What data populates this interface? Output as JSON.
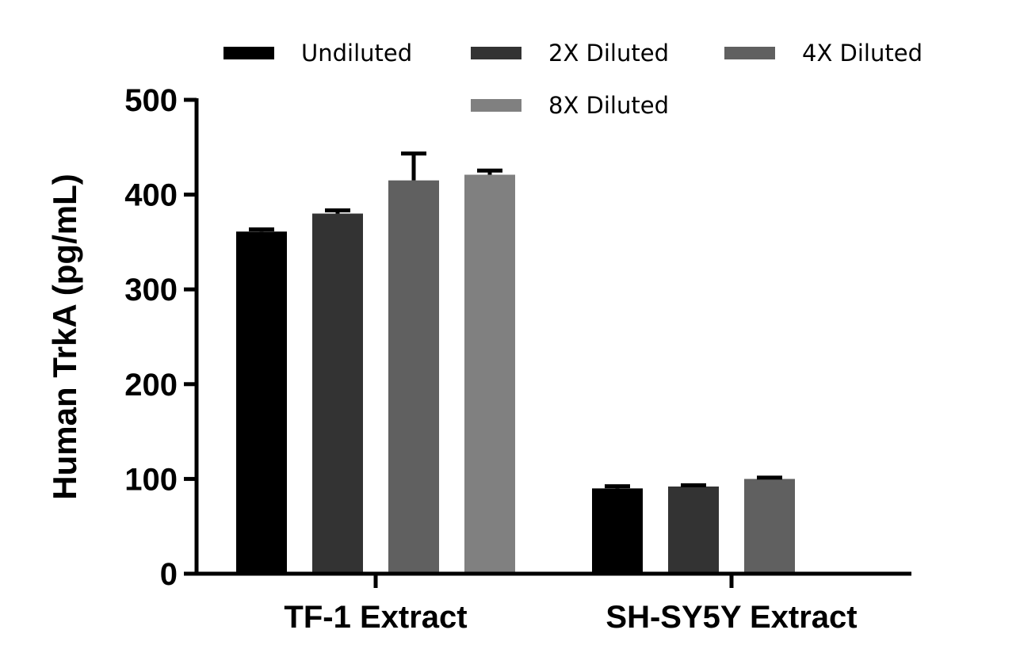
{
  "chart_data": {
    "type": "bar",
    "title": "",
    "xlabel": "",
    "ylabel": "Human TrkA (pg/mL)",
    "ylim": [
      0,
      500
    ],
    "yticks": [
      "0",
      "100",
      "200",
      "300",
      "400",
      "500"
    ],
    "categories": [
      "TF-1 Extract",
      "SH-SY5Y Extract"
    ],
    "legend_position": "top",
    "grid": false,
    "series": [
      {
        "name": "Undiluted",
        "color": "#000000",
        "values": [
          361,
          90
        ],
        "error_upper": [
          365,
          94
        ]
      },
      {
        "name": "2X Diluted",
        "color": "#333333",
        "values": [
          380,
          92
        ],
        "error_upper": [
          385,
          95
        ]
      },
      {
        "name": "4X Diluted",
        "color": "#606060",
        "values": [
          415,
          100
        ],
        "error_upper": [
          445,
          103
        ]
      },
      {
        "name": "8X Diluted",
        "color": "#808080",
        "values": [
          421,
          null
        ],
        "error_upper": [
          427,
          null
        ]
      }
    ]
  }
}
